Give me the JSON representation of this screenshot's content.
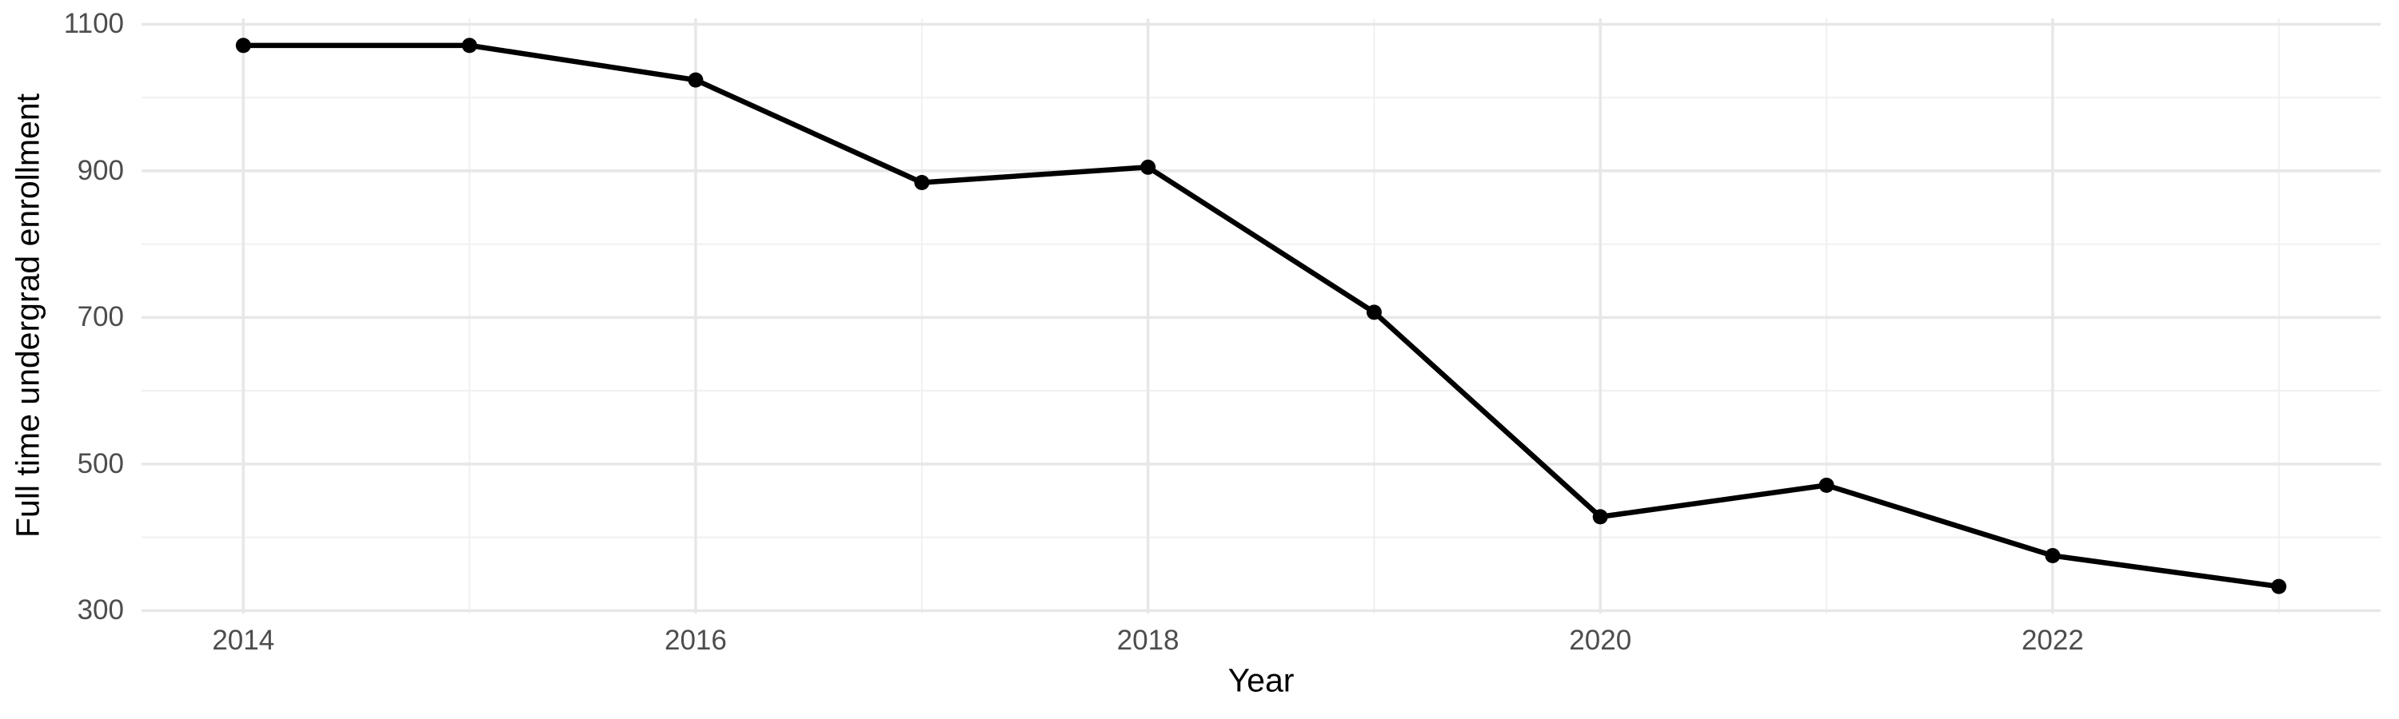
{
  "chart_data": {
    "type": "line",
    "title": "",
    "xlabel": "Year",
    "ylabel": "Full time undergrad enrollment",
    "x": [
      2014,
      2015,
      2016,
      2017,
      2018,
      2019,
      2020,
      2021,
      2022,
      2023
    ],
    "series": [
      {
        "name": "Full time undergrad enrollment",
        "values": [
          1071,
          1071,
          1024,
          884,
          905,
          707,
          428,
          471,
          375,
          333
        ]
      }
    ],
    "x_major_ticks": [
      2014,
      2016,
      2018,
      2020,
      2022
    ],
    "x_minor_gridlines": [
      2015,
      2017,
      2019,
      2021,
      2023
    ],
    "y_major_ticks": [
      300,
      500,
      700,
      900,
      1100
    ],
    "y_minor_gridlines": [
      400,
      600,
      800,
      1000
    ],
    "xlim": [
      2013.55,
      2023.45
    ],
    "ylim": [
      296,
      1108
    ],
    "grid": "on",
    "legend": "none",
    "colors": {
      "line": "#000000",
      "point": "#000000",
      "grid_major": "#e7e7e7",
      "grid_minor": "#f0f0f0",
      "tick_label": "#4d4d4d",
      "axis_title": "#000000",
      "background": "#ffffff"
    }
  }
}
